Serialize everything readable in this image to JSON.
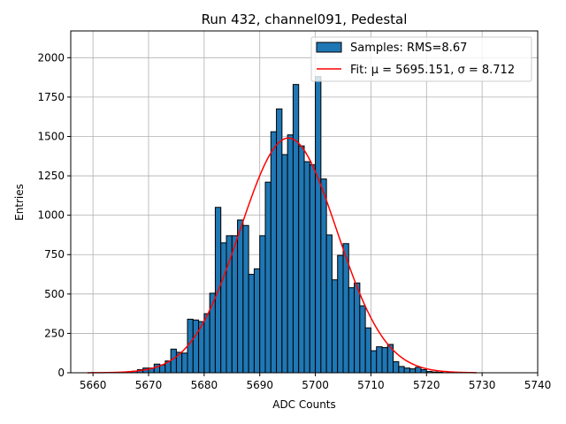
{
  "chart_data": {
    "type": "bar",
    "title": "Run 432, channel091, Pedestal",
    "xlabel": "ADC Counts",
    "ylabel": "Entries",
    "xlim": [
      5656,
      5740
    ],
    "ylim": [
      0,
      2170
    ],
    "xticks": [
      5660,
      5670,
      5680,
      5690,
      5700,
      5710,
      5720,
      5730,
      5740
    ],
    "yticks": [
      0,
      250,
      500,
      750,
      1000,
      1250,
      1500,
      1750,
      2000
    ],
    "grid": true,
    "legend_position": "top-right",
    "colors": {
      "bar": "#1f77b4",
      "bar_edge": "#000000",
      "fit": "#ff0000",
      "grid": "#b0b0b0"
    },
    "series": [
      {
        "name": "Samples: RMS=8.67",
        "kind": "histogram",
        "bin_width": 1,
        "bins": [
          {
            "x": 5666,
            "value": 5
          },
          {
            "x": 5667,
            "value": 10
          },
          {
            "x": 5668,
            "value": 20
          },
          {
            "x": 5669,
            "value": 30
          },
          {
            "x": 5670,
            "value": 30
          },
          {
            "x": 5671,
            "value": 55
          },
          {
            "x": 5672,
            "value": 50
          },
          {
            "x": 5673,
            "value": 75
          },
          {
            "x": 5674,
            "value": 150
          },
          {
            "x": 5675,
            "value": 130
          },
          {
            "x": 5676,
            "value": 125
          },
          {
            "x": 5677,
            "value": 340
          },
          {
            "x": 5678,
            "value": 335
          },
          {
            "x": 5679,
            "value": 325
          },
          {
            "x": 5680,
            "value": 375
          },
          {
            "x": 5681,
            "value": 505
          },
          {
            "x": 5682,
            "value": 1050
          },
          {
            "x": 5683,
            "value": 825
          },
          {
            "x": 5684,
            "value": 870
          },
          {
            "x": 5685,
            "value": 870
          },
          {
            "x": 5686,
            "value": 970
          },
          {
            "x": 5687,
            "value": 935
          },
          {
            "x": 5688,
            "value": 625
          },
          {
            "x": 5689,
            "value": 660
          },
          {
            "x": 5690,
            "value": 870
          },
          {
            "x": 5691,
            "value": 1210
          },
          {
            "x": 5692,
            "value": 1530
          },
          {
            "x": 5693,
            "value": 1675
          },
          {
            "x": 5694,
            "value": 1385
          },
          {
            "x": 5695,
            "value": 1510
          },
          {
            "x": 5696,
            "value": 1830
          },
          {
            "x": 5697,
            "value": 1440
          },
          {
            "x": 5698,
            "value": 1340
          },
          {
            "x": 5699,
            "value": 1320
          },
          {
            "x": 5700,
            "value": 1880
          },
          {
            "x": 5701,
            "value": 1230
          },
          {
            "x": 5702,
            "value": 875
          },
          {
            "x": 5703,
            "value": 590
          },
          {
            "x": 5704,
            "value": 745
          },
          {
            "x": 5705,
            "value": 820
          },
          {
            "x": 5706,
            "value": 540
          },
          {
            "x": 5707,
            "value": 570
          },
          {
            "x": 5708,
            "value": 425
          },
          {
            "x": 5709,
            "value": 285
          },
          {
            "x": 5710,
            "value": 140
          },
          {
            "x": 5711,
            "value": 165
          },
          {
            "x": 5712,
            "value": 160
          },
          {
            "x": 5713,
            "value": 180
          },
          {
            "x": 5714,
            "value": 70
          },
          {
            "x": 5715,
            "value": 40
          },
          {
            "x": 5716,
            "value": 30
          },
          {
            "x": 5717,
            "value": 25
          },
          {
            "x": 5718,
            "value": 35
          },
          {
            "x": 5719,
            "value": 20
          },
          {
            "x": 5720,
            "value": 8
          },
          {
            "x": 5721,
            "value": 5
          },
          {
            "x": 5722,
            "value": 3
          }
        ]
      },
      {
        "name": "Fit: μ = 5695.151, σ = 8.712",
        "kind": "gaussian",
        "mu": 5695.151,
        "sigma": 8.712,
        "peak": 1490,
        "x_range": [
          5659,
          5729
        ]
      }
    ]
  }
}
